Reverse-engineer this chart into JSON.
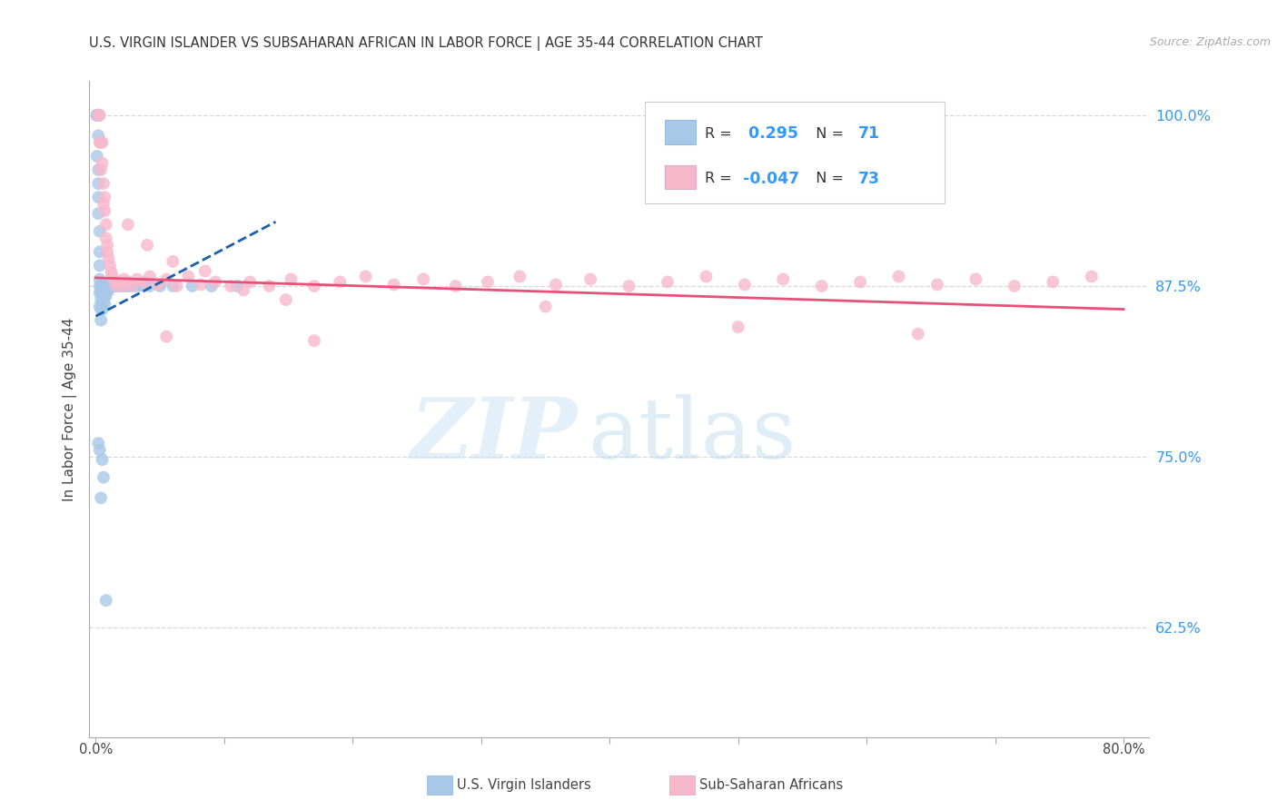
{
  "title": "U.S. VIRGIN ISLANDER VS SUBSAHARAN AFRICAN IN LABOR FORCE | AGE 35-44 CORRELATION CHART",
  "source": "Source: ZipAtlas.com",
  "ylabel": "In Labor Force | Age 35-44",
  "xlim": [
    -0.005,
    0.82
  ],
  "ylim": [
    0.545,
    1.025
  ],
  "yticks": [
    0.625,
    0.75,
    0.875,
    1.0
  ],
  "ytick_labels": [
    "62.5%",
    "75.0%",
    "87.5%",
    "100.0%"
  ],
  "blue_R": 0.295,
  "blue_N": 71,
  "pink_R": -0.047,
  "pink_N": 73,
  "blue_color": "#a8c8e8",
  "blue_line_color": "#1a5fa8",
  "pink_color": "#f8b8cc",
  "pink_line_color": "#e8507a",
  "grid_color": "#d8d8d8",
  "title_color": "#333333",
  "source_color": "#aaaaaa",
  "right_label_color": "#3399ff",
  "background": "#ffffff",
  "blue_trendline_x": [
    0.0,
    0.14
  ],
  "blue_trendline_y": [
    0.853,
    0.922
  ],
  "pink_trendline_x": [
    0.0,
    0.8
  ],
  "pink_trendline_y": [
    0.881,
    0.858
  ],
  "blue_x": [
    0.001,
    0.001,
    0.001,
    0.001,
    0.001,
    0.001,
    0.002,
    0.002,
    0.002,
    0.002,
    0.002,
    0.002,
    0.002,
    0.002,
    0.003,
    0.003,
    0.003,
    0.003,
    0.003,
    0.003,
    0.003,
    0.004,
    0.004,
    0.004,
    0.004,
    0.004,
    0.005,
    0.005,
    0.005,
    0.005,
    0.005,
    0.006,
    0.006,
    0.006,
    0.006,
    0.007,
    0.007,
    0.007,
    0.007,
    0.008,
    0.008,
    0.008,
    0.009,
    0.009,
    0.01,
    0.01,
    0.011,
    0.012,
    0.013,
    0.014,
    0.015,
    0.016,
    0.018,
    0.02,
    0.022,
    0.025,
    0.028,
    0.032,
    0.037,
    0.042,
    0.05,
    0.06,
    0.075,
    0.09,
    0.11,
    0.008,
    0.004,
    0.003,
    0.002,
    0.005,
    0.006
  ],
  "blue_y": [
    1.0,
    1.0,
    1.0,
    1.0,
    1.0,
    0.97,
    1.0,
    1.0,
    1.0,
    0.985,
    0.96,
    0.95,
    0.94,
    0.928,
    0.915,
    0.9,
    0.89,
    0.88,
    0.875,
    0.87,
    0.86,
    0.875,
    0.87,
    0.865,
    0.858,
    0.85,
    0.875,
    0.872,
    0.868,
    0.862,
    0.858,
    0.875,
    0.873,
    0.87,
    0.865,
    0.875,
    0.872,
    0.868,
    0.862,
    0.875,
    0.872,
    0.868,
    0.875,
    0.872,
    0.875,
    0.872,
    0.875,
    0.875,
    0.875,
    0.875,
    0.875,
    0.875,
    0.875,
    0.875,
    0.875,
    0.875,
    0.875,
    0.875,
    0.875,
    0.875,
    0.875,
    0.875,
    0.875,
    0.875,
    0.875,
    0.645,
    0.72,
    0.755,
    0.76,
    0.748,
    0.735
  ],
  "pink_x": [
    0.002,
    0.003,
    0.003,
    0.004,
    0.004,
    0.005,
    0.005,
    0.006,
    0.006,
    0.007,
    0.007,
    0.008,
    0.008,
    0.009,
    0.009,
    0.01,
    0.011,
    0.012,
    0.013,
    0.015,
    0.016,
    0.018,
    0.02,
    0.022,
    0.025,
    0.028,
    0.032,
    0.037,
    0.042,
    0.048,
    0.055,
    0.063,
    0.072,
    0.082,
    0.093,
    0.105,
    0.12,
    0.135,
    0.152,
    0.17,
    0.19,
    0.21,
    0.232,
    0.255,
    0.28,
    0.305,
    0.33,
    0.358,
    0.385,
    0.415,
    0.445,
    0.475,
    0.505,
    0.535,
    0.565,
    0.595,
    0.625,
    0.655,
    0.685,
    0.715,
    0.745,
    0.775,
    0.025,
    0.04,
    0.06,
    0.085,
    0.115,
    0.148,
    0.055,
    0.17,
    0.35,
    0.5,
    0.64
  ],
  "pink_y": [
    1.0,
    1.0,
    0.98,
    0.98,
    0.96,
    0.98,
    0.965,
    0.95,
    0.935,
    0.94,
    0.93,
    0.92,
    0.91,
    0.905,
    0.9,
    0.895,
    0.89,
    0.885,
    0.882,
    0.878,
    0.875,
    0.878,
    0.875,
    0.88,
    0.878,
    0.875,
    0.88,
    0.878,
    0.882,
    0.876,
    0.88,
    0.875,
    0.882,
    0.876,
    0.878,
    0.875,
    0.878,
    0.875,
    0.88,
    0.875,
    0.878,
    0.882,
    0.876,
    0.88,
    0.875,
    0.878,
    0.882,
    0.876,
    0.88,
    0.875,
    0.878,
    0.882,
    0.876,
    0.88,
    0.875,
    0.878,
    0.882,
    0.876,
    0.88,
    0.875,
    0.878,
    0.882,
    0.92,
    0.905,
    0.893,
    0.886,
    0.872,
    0.865,
    0.838,
    0.835,
    0.86,
    0.845,
    0.84
  ]
}
